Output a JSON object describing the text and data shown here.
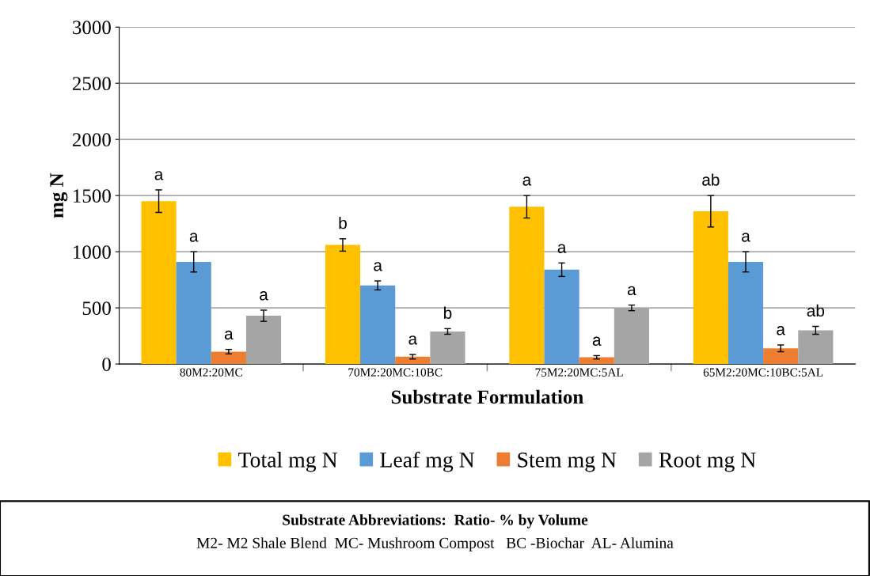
{
  "chart_data": {
    "type": "bar",
    "xlabel": "Substrate Formulation",
    "ylabel": "mg N",
    "categories": [
      "80M2:20MC",
      "70M2:20MC:10BC",
      "75M2:20MC:5AL",
      "65M2:20MC:10BC:5AL"
    ],
    "series": [
      {
        "name": "Total mg N",
        "color": "#ffc000",
        "values": [
          1450,
          1060,
          1400,
          1360
        ],
        "errors": [
          100,
          55,
          100,
          140
        ]
      },
      {
        "name": "Leaf mg N",
        "color": "#5b9bd5",
        "values": [
          910,
          700,
          840,
          910
        ],
        "errors": [
          90,
          40,
          60,
          90
        ]
      },
      {
        "name": "Stem mg N",
        "color": "#ed7d31",
        "values": [
          110,
          65,
          60,
          140
        ],
        "errors": [
          20,
          20,
          15,
          30
        ]
      },
      {
        "name": "Root mg N",
        "color": "#a5a5a5",
        "values": [
          430,
          290,
          500,
          300
        ],
        "errors": [
          50,
          25,
          25,
          35
        ]
      }
    ],
    "ylim": [
      0,
      3000
    ],
    "yticks": [
      0,
      500,
      1000,
      1500,
      2000,
      2500,
      3000
    ],
    "grid": "y",
    "legend": "bottom",
    "annotations": [
      "a",
      "a",
      "a",
      "a",
      "b",
      "a",
      "a",
      "b",
      "a",
      "a",
      "a",
      "a",
      "ab",
      "a",
      "a",
      "ab",
      "Substrate Abbreviations:  Ratio- % by Volume",
      "M2- M2 Shale Blend  MC- Mushroom Compost   BC -Biochar  AL- Alumina"
    ]
  }
}
